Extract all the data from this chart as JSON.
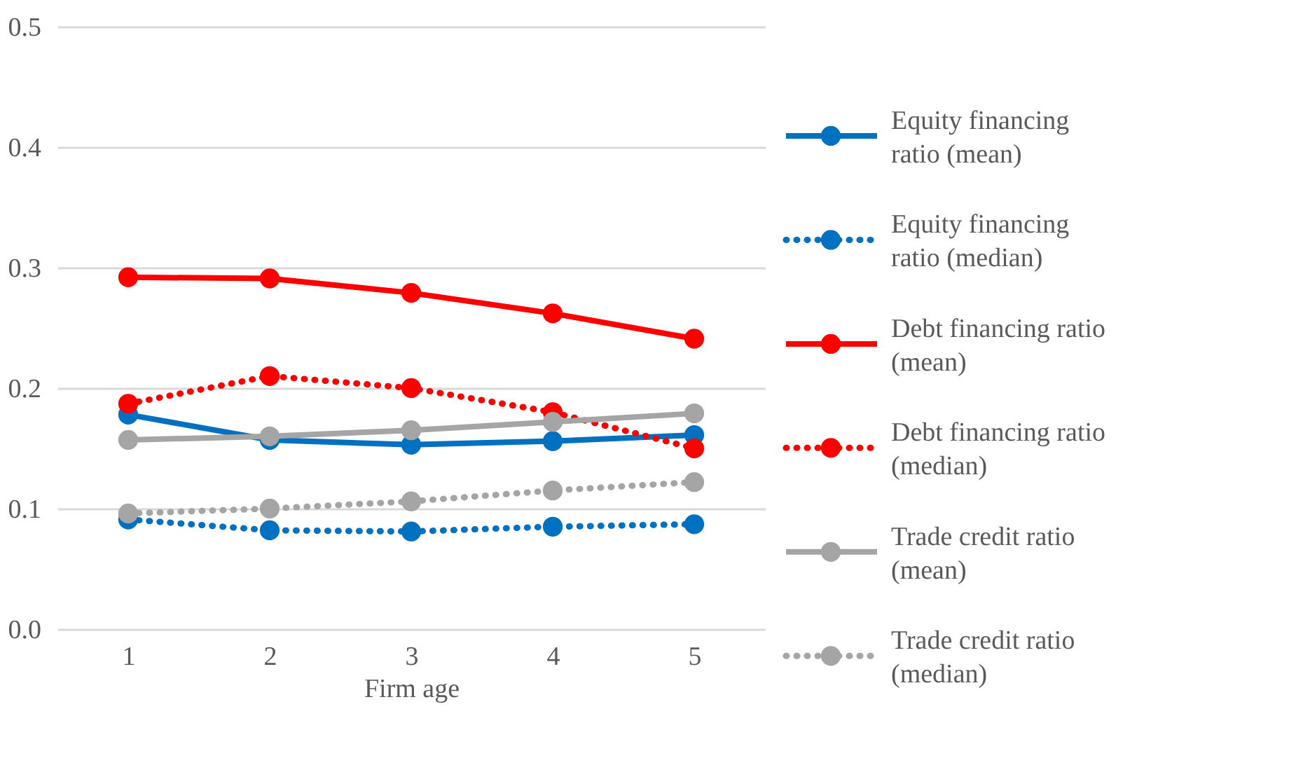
{
  "chart_data": {
    "type": "line",
    "xlabel": "Firm age",
    "categories": [
      "1",
      "2",
      "3",
      "4",
      "5"
    ],
    "ylim": [
      0,
      0.5
    ],
    "yticks": [
      {
        "value": 0,
        "label": "0.0"
      },
      {
        "value": 0.1,
        "label": "0.1"
      },
      {
        "value": 0.2,
        "label": "0.2"
      },
      {
        "value": 0.3,
        "label": "0.3"
      },
      {
        "value": 0.4,
        "label": "0.4"
      },
      {
        "value": 0.5,
        "label": "0.5"
      }
    ],
    "grid": "y",
    "legend": "right",
    "marker": "circle",
    "series": [
      {
        "name": "Equity financing ratio (mean)",
        "color": "#0070c0",
        "line_style": "solid",
        "values": [
          0.178,
          0.157,
          0.153,
          0.156,
          0.161
        ]
      },
      {
        "name": "Equity financing ratio (median)",
        "color": "#0070c0",
        "line_style": "dotted",
        "values": [
          0.091,
          0.082,
          0.081,
          0.085,
          0.087
        ]
      },
      {
        "name": "Debt financing ratio (mean)",
        "color": "#ff0000",
        "line_style": "solid",
        "values": [
          0.292,
          0.291,
          0.279,
          0.262,
          0.241
        ]
      },
      {
        "name": "Debt financing ratio (median)",
        "color": "#ff0000",
        "line_style": "dotted",
        "values": [
          0.187,
          0.21,
          0.2,
          0.18,
          0.15
        ]
      },
      {
        "name": "Trade credit ratio (mean)",
        "color": "#a5a5a5",
        "line_style": "solid",
        "values": [
          0.157,
          0.16,
          0.165,
          0.172,
          0.179
        ]
      },
      {
        "name": "Trade credit ratio (median)",
        "color": "#a5a5a5",
        "line_style": "dotted",
        "values": [
          0.096,
          0.1,
          0.106,
          0.115,
          0.122
        ]
      }
    ]
  }
}
